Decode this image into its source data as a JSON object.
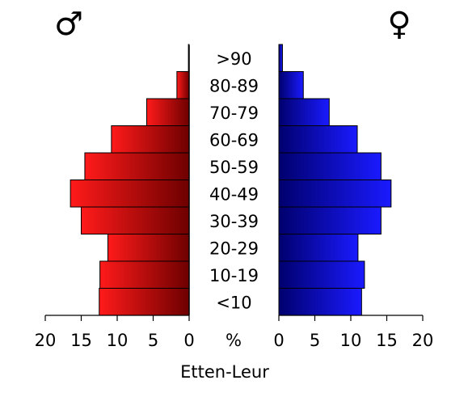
{
  "chart_data": {
    "type": "bar",
    "title": "Etten-Leur",
    "unit_label": "%",
    "categories": [
      "<10",
      "10-19",
      "20-29",
      "30-39",
      "40-49",
      "50-59",
      "60-69",
      "70-79",
      "80-89",
      ">90"
    ],
    "series": [
      {
        "name": "♂",
        "side": "left",
        "color_light": "#ff1a1a",
        "color_dark": "#6e0000",
        "values": [
          12.5,
          12.4,
          11.3,
          15.0,
          16.5,
          14.5,
          10.8,
          5.9,
          1.7,
          0.1
        ]
      },
      {
        "name": "♀",
        "side": "right",
        "color_light": "#1a1aff",
        "color_dark": "#00006e",
        "values": [
          11.5,
          11.9,
          11.0,
          14.2,
          15.6,
          14.2,
          10.9,
          7.0,
          3.4,
          0.5
        ]
      }
    ],
    "xlim": [
      0,
      20
    ],
    "ticks": [
      "20",
      "15",
      "10",
      "5",
      "0",
      "0",
      "5",
      "10",
      "15",
      "20"
    ]
  }
}
